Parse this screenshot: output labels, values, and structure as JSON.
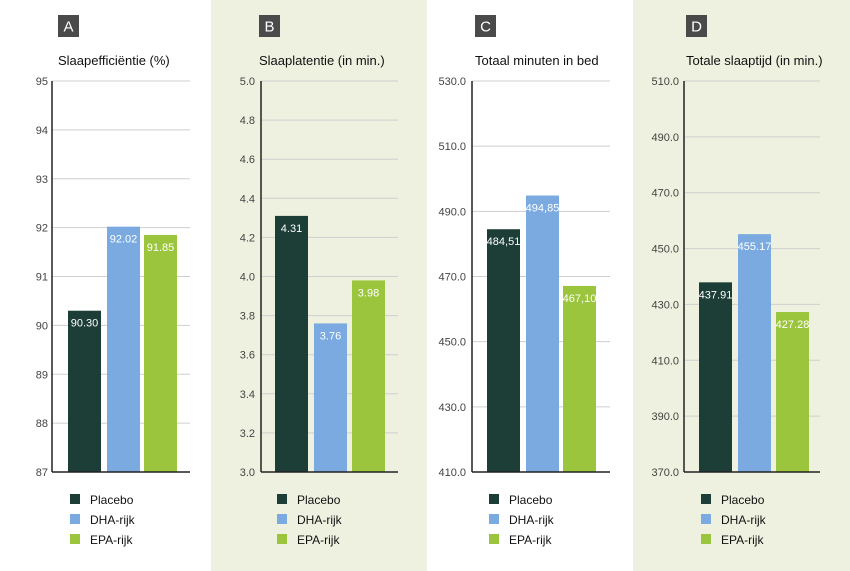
{
  "colors": {
    "placebo": "#1d3d37",
    "dha": "#7aaadf",
    "epa": "#9bc53d",
    "panel_highlight": "#eef1df",
    "grid": "#cfcfcf",
    "axis": "#222222",
    "letter_box": "#4a4a4a"
  },
  "chart_data": [
    {
      "type": "bar",
      "letter": "A",
      "title": "Slaapefficiëntie (%)",
      "categories": [
        "Placebo",
        "DHA-rijk",
        "EPA-rijk"
      ],
      "values": [
        90.3,
        92.02,
        91.85
      ],
      "value_labels": [
        "90.30",
        "92.02",
        "91.85"
      ],
      "ylim": [
        87,
        95
      ],
      "yticks": [
        87,
        88,
        89,
        90,
        91,
        92,
        93,
        94,
        95
      ],
      "ytick_labels": [
        "87",
        "88",
        "89",
        "90",
        "91",
        "92",
        "93",
        "94",
        "95"
      ],
      "grid": true,
      "legend": [
        "Placebo",
        "DHA-rijk",
        "EPA-rijk"
      ],
      "legend_position": "bottom"
    },
    {
      "type": "bar",
      "letter": "B",
      "title": "Slaaplatentie (in min.)",
      "categories": [
        "Placebo",
        "DHA-rijk",
        "EPA-rijk"
      ],
      "values": [
        4.31,
        3.76,
        3.98
      ],
      "value_labels": [
        "4.31",
        "3.76",
        "3.98"
      ],
      "ylim": [
        3.0,
        5.0
      ],
      "yticks": [
        3.0,
        3.2,
        3.4,
        3.6,
        3.8,
        4.0,
        4.2,
        4.4,
        4.6,
        4.8,
        5.0
      ],
      "ytick_labels": [
        "3.0",
        "3.2",
        "3.4",
        "3.6",
        "3.8",
        "4.0",
        "4.2",
        "4.4",
        "4.6",
        "4.8",
        "5.0"
      ],
      "grid": true,
      "legend": [
        "Placebo",
        "DHA-rijk",
        "EPA-rijk"
      ],
      "legend_position": "bottom",
      "highlighted_background": true
    },
    {
      "type": "bar",
      "letter": "C",
      "title": "Totaal minuten in bed",
      "categories": [
        "Placebo",
        "DHA-rijk",
        "EPA-rijk"
      ],
      "values": [
        484.51,
        494.85,
        467.1
      ],
      "value_labels": [
        "484,51",
        "494,85",
        "467,10"
      ],
      "ylim": [
        410,
        530
      ],
      "yticks": [
        410,
        430,
        450,
        470,
        490,
        510,
        530
      ],
      "ytick_labels": [
        "410.0",
        "430.0",
        "450.0",
        "470.0",
        "490.0",
        "510.0",
        "530.0"
      ],
      "grid": true,
      "legend": [
        "Placebo",
        "DHA-rijk",
        "EPA-rijk"
      ],
      "legend_position": "bottom"
    },
    {
      "type": "bar",
      "letter": "D",
      "title": "Totale slaaptijd (in min.)",
      "categories": [
        "Placebo",
        "DHA-rijk",
        "EPA-rijk"
      ],
      "values": [
        437.91,
        455.17,
        427.28
      ],
      "value_labels": [
        "437.91",
        "455.17",
        "427.28"
      ],
      "ylim": [
        370,
        510
      ],
      "yticks": [
        370,
        390,
        410,
        430,
        450,
        470,
        490,
        510
      ],
      "ytick_labels": [
        "370.0",
        "390.0",
        "410.0",
        "430.0",
        "450.0",
        "470.0",
        "490.0",
        "510.0"
      ],
      "grid": true,
      "legend": [
        "Placebo",
        "DHA-rijk",
        "EPA-rijk"
      ],
      "legend_position": "bottom",
      "highlighted_background": true
    }
  ]
}
